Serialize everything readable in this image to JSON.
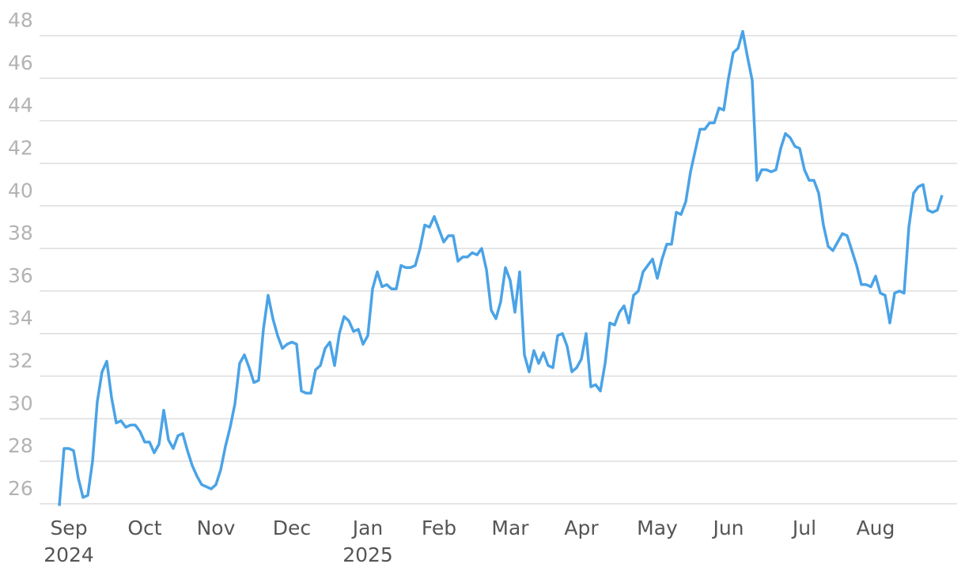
{
  "chart_data": {
    "type": "line",
    "categories": [
      null,
      null,
      "Sep",
      null,
      null,
      null,
      null,
      null,
      null,
      null,
      null,
      null,
      null,
      null,
      null,
      null,
      null,
      null,
      "Oct",
      null,
      null,
      null,
      null,
      null,
      null,
      null,
      null,
      null,
      null,
      null,
      null,
      null,
      null,
      "Nov",
      null,
      null,
      null,
      null,
      null,
      null,
      null,
      null,
      null,
      null,
      null,
      null,
      null,
      null,
      null,
      "Dec",
      null,
      null,
      null,
      null,
      null,
      null,
      null,
      null,
      null,
      null,
      null,
      null,
      null,
      null,
      null,
      "Jan",
      null,
      null,
      null,
      null,
      null,
      null,
      null,
      null,
      null,
      null,
      null,
      null,
      null,
      null,
      "Feb",
      null,
      null,
      null,
      null,
      null,
      null,
      null,
      null,
      null,
      null,
      null,
      null,
      null,
      null,
      "Mar",
      null,
      null,
      null,
      null,
      null,
      null,
      null,
      null,
      null,
      null,
      null,
      null,
      null,
      null,
      "Apr",
      null,
      null,
      null,
      null,
      null,
      null,
      null,
      null,
      null,
      null,
      null,
      null,
      null,
      null,
      null,
      "May",
      null,
      null,
      null,
      null,
      null,
      null,
      null,
      null,
      null,
      null,
      null,
      null,
      null,
      null,
      "Jun",
      null,
      null,
      null,
      null,
      null,
      null,
      null,
      null,
      null,
      null,
      null,
      null,
      null,
      null,
      null,
      "Jul",
      null,
      null,
      null,
      null,
      null,
      null,
      null,
      null,
      null,
      null,
      null,
      null,
      null,
      null,
      "Aug",
      null,
      null,
      null,
      null,
      null,
      null,
      null,
      null,
      null,
      null,
      null,
      null,
      null,
      null
    ],
    "category_years": [
      null,
      null,
      "2024",
      null,
      null,
      null,
      null,
      null,
      null,
      null,
      null,
      null,
      null,
      null,
      null,
      null,
      null,
      null,
      null,
      null,
      null,
      null,
      null,
      null,
      null,
      null,
      null,
      null,
      null,
      null,
      null,
      null,
      null,
      null,
      null,
      null,
      null,
      null,
      null,
      null,
      null,
      null,
      null,
      null,
      null,
      null,
      null,
      null,
      null,
      null,
      null,
      null,
      null,
      null,
      null,
      null,
      null,
      null,
      null,
      null,
      null,
      null,
      null,
      null,
      null,
      "2025",
      null,
      null,
      null,
      null,
      null,
      null,
      null,
      null,
      null,
      null,
      null,
      null,
      null,
      null,
      null,
      null,
      null,
      null,
      null,
      null,
      null,
      null,
      null,
      null,
      null,
      null,
      null,
      null,
      null,
      null,
      null,
      null,
      null,
      null,
      null,
      null,
      null,
      null,
      null,
      null,
      null,
      null,
      null,
      null,
      null,
      null,
      null,
      null,
      null,
      null,
      null,
      null,
      null,
      null,
      null,
      null,
      null,
      null,
      null,
      null,
      null,
      null,
      null,
      null,
      null,
      null,
      null,
      null,
      null,
      null,
      null,
      null,
      null,
      null,
      null,
      null,
      null,
      null,
      null,
      null,
      null,
      null,
      null,
      null,
      null,
      null,
      null,
      null,
      null,
      null,
      null,
      null,
      null,
      null,
      null,
      null,
      null,
      null,
      null,
      null,
      null,
      null,
      null,
      null,
      null,
      null,
      null,
      null,
      null,
      null,
      null,
      null,
      null,
      null,
      null,
      null,
      null,
      null,
      null,
      null,
      null,
      null,
      null,
      null,
      null
    ],
    "values": [
      25.9,
      28.6,
      28.6,
      28.5,
      27.2,
      26.3,
      26.4,
      28.0,
      30.8,
      32.2,
      32.7,
      31.0,
      29.8,
      29.9,
      29.6,
      29.7,
      29.7,
      29.4,
      28.9,
      28.9,
      28.4,
      28.8,
      30.4,
      29.0,
      28.6,
      29.2,
      29.3,
      28.5,
      27.8,
      27.3,
      26.9,
      26.8,
      26.7,
      26.9,
      27.6,
      28.7,
      29.6,
      30.7,
      32.6,
      33.0,
      32.4,
      31.7,
      31.8,
      34.2,
      35.8,
      34.7,
      33.9,
      33.3,
      33.5,
      33.6,
      33.5,
      31.3,
      31.2,
      31.2,
      32.3,
      32.5,
      33.3,
      33.6,
      32.5,
      34.0,
      34.8,
      34.6,
      34.1,
      34.2,
      33.5,
      33.9,
      36.1,
      36.9,
      36.2,
      36.3,
      36.1,
      36.1,
      37.2,
      37.1,
      37.1,
      37.2,
      38.0,
      39.1,
      39.0,
      39.5,
      38.9,
      38.3,
      38.6,
      38.6,
      37.4,
      37.6,
      37.6,
      37.8,
      37.7,
      38.0,
      37.0,
      35.1,
      34.7,
      35.5,
      37.1,
      36.5,
      35.0,
      36.9,
      33.0,
      32.2,
      33.2,
      32.6,
      33.1,
      32.5,
      32.4,
      33.9,
      34.0,
      33.4,
      32.2,
      32.4,
      32.8,
      34.0,
      31.5,
      31.6,
      31.3,
      32.6,
      34.5,
      34.4,
      35.0,
      35.3,
      34.5,
      35.8,
      36.0,
      36.9,
      37.2,
      37.5,
      36.6,
      37.5,
      38.2,
      38.2,
      39.7,
      39.6,
      40.2,
      41.6,
      42.6,
      43.6,
      43.6,
      43.9,
      43.9,
      44.6,
      44.5,
      46.0,
      47.2,
      47.4,
      48.2,
      47.0,
      45.9,
      41.2,
      41.7,
      41.7,
      41.6,
      41.7,
      42.7,
      43.4,
      43.2,
      42.8,
      42.7,
      41.7,
      41.2,
      41.2,
      40.6,
      39.1,
      38.1,
      37.9,
      38.3,
      38.7,
      38.6,
      37.9,
      37.2,
      36.3,
      36.3,
      36.2,
      36.7,
      35.9,
      35.8,
      34.5,
      35.9,
      36.0,
      35.9,
      39.0,
      40.6,
      40.9,
      41.0,
      39.8,
      39.7,
      39.8,
      40.5
    ],
    "color": "#4aa3e6",
    "ylim": [
      25.7,
      48.3
    ],
    "yticks": [
      26,
      28,
      30,
      32,
      34,
      36,
      38,
      40,
      42,
      44,
      46,
      48
    ],
    "grid": true
  }
}
